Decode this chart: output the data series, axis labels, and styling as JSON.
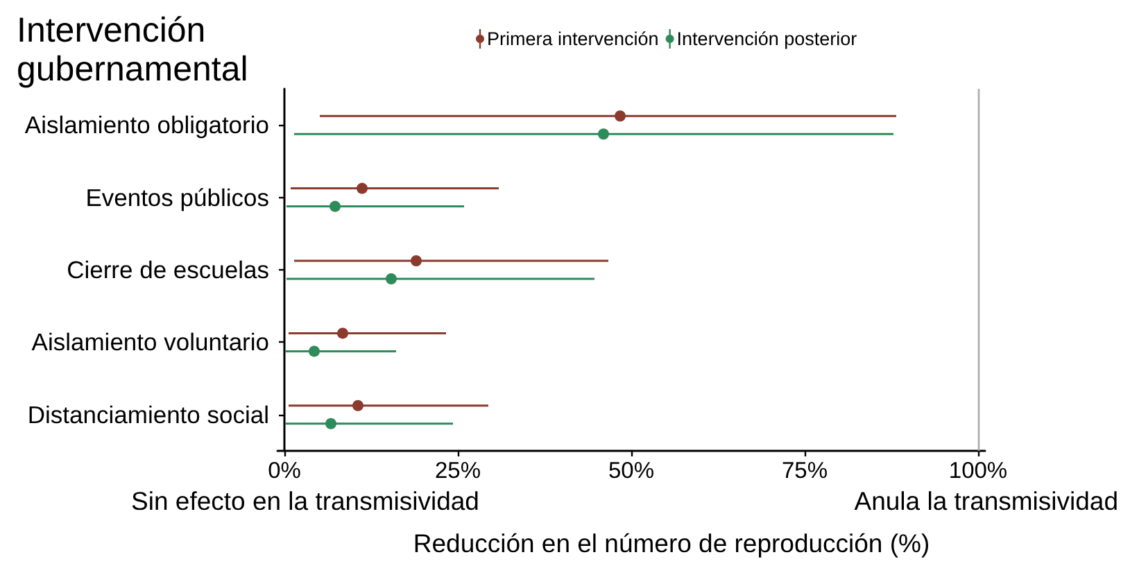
{
  "chart_data": {
    "type": "scatter",
    "orientation": "horizontal",
    "ylabel": "Intervención gubernamental",
    "xlabel": "Reducción en el número de reproducción (%)",
    "categories": [
      "Aislamiento obligatorio",
      "Eventos públicos",
      "Cierre de escuelas",
      "Aislamiento voluntario",
      "Distanciamiento social"
    ],
    "series": [
      {
        "name": "Primera intervención",
        "color": "#8b3a2e",
        "values": [
          48.4,
          11.2,
          19.0,
          8.4,
          10.6
        ],
        "errors": [
          [
            5.1,
            88.2
          ],
          [
            0.9,
            30.9
          ],
          [
            1.4,
            46.7
          ],
          [
            0.6,
            23.3
          ],
          [
            0.6,
            29.4
          ]
        ]
      },
      {
        "name": "Intervención posterior",
        "color": "#2e8b5a",
        "values": [
          46.0,
          7.3,
          15.4,
          4.3,
          6.7
        ],
        "errors": [
          [
            1.4,
            87.8
          ],
          [
            0.3,
            25.9
          ],
          [
            0.3,
            44.7
          ],
          [
            0.1,
            16.1
          ],
          [
            0.1,
            24.3
          ]
        ]
      }
    ],
    "xlim": [
      -1,
      101
    ],
    "xticks": [
      {
        "value": 0,
        "label": "0%"
      },
      {
        "value": 25,
        "label": "25%"
      },
      {
        "value": 50,
        "label": "50%"
      },
      {
        "value": 75,
        "label": "75%"
      },
      {
        "value": 100,
        "label": "100%"
      }
    ],
    "ref_lines": [
      {
        "axis": "x",
        "value": 100,
        "color": "#aaaaaa"
      }
    ],
    "annotations": [
      "Sin efecto en la transmisividad",
      "Anula la transmisividad"
    ],
    "legend": "top",
    "marker": "circle"
  }
}
